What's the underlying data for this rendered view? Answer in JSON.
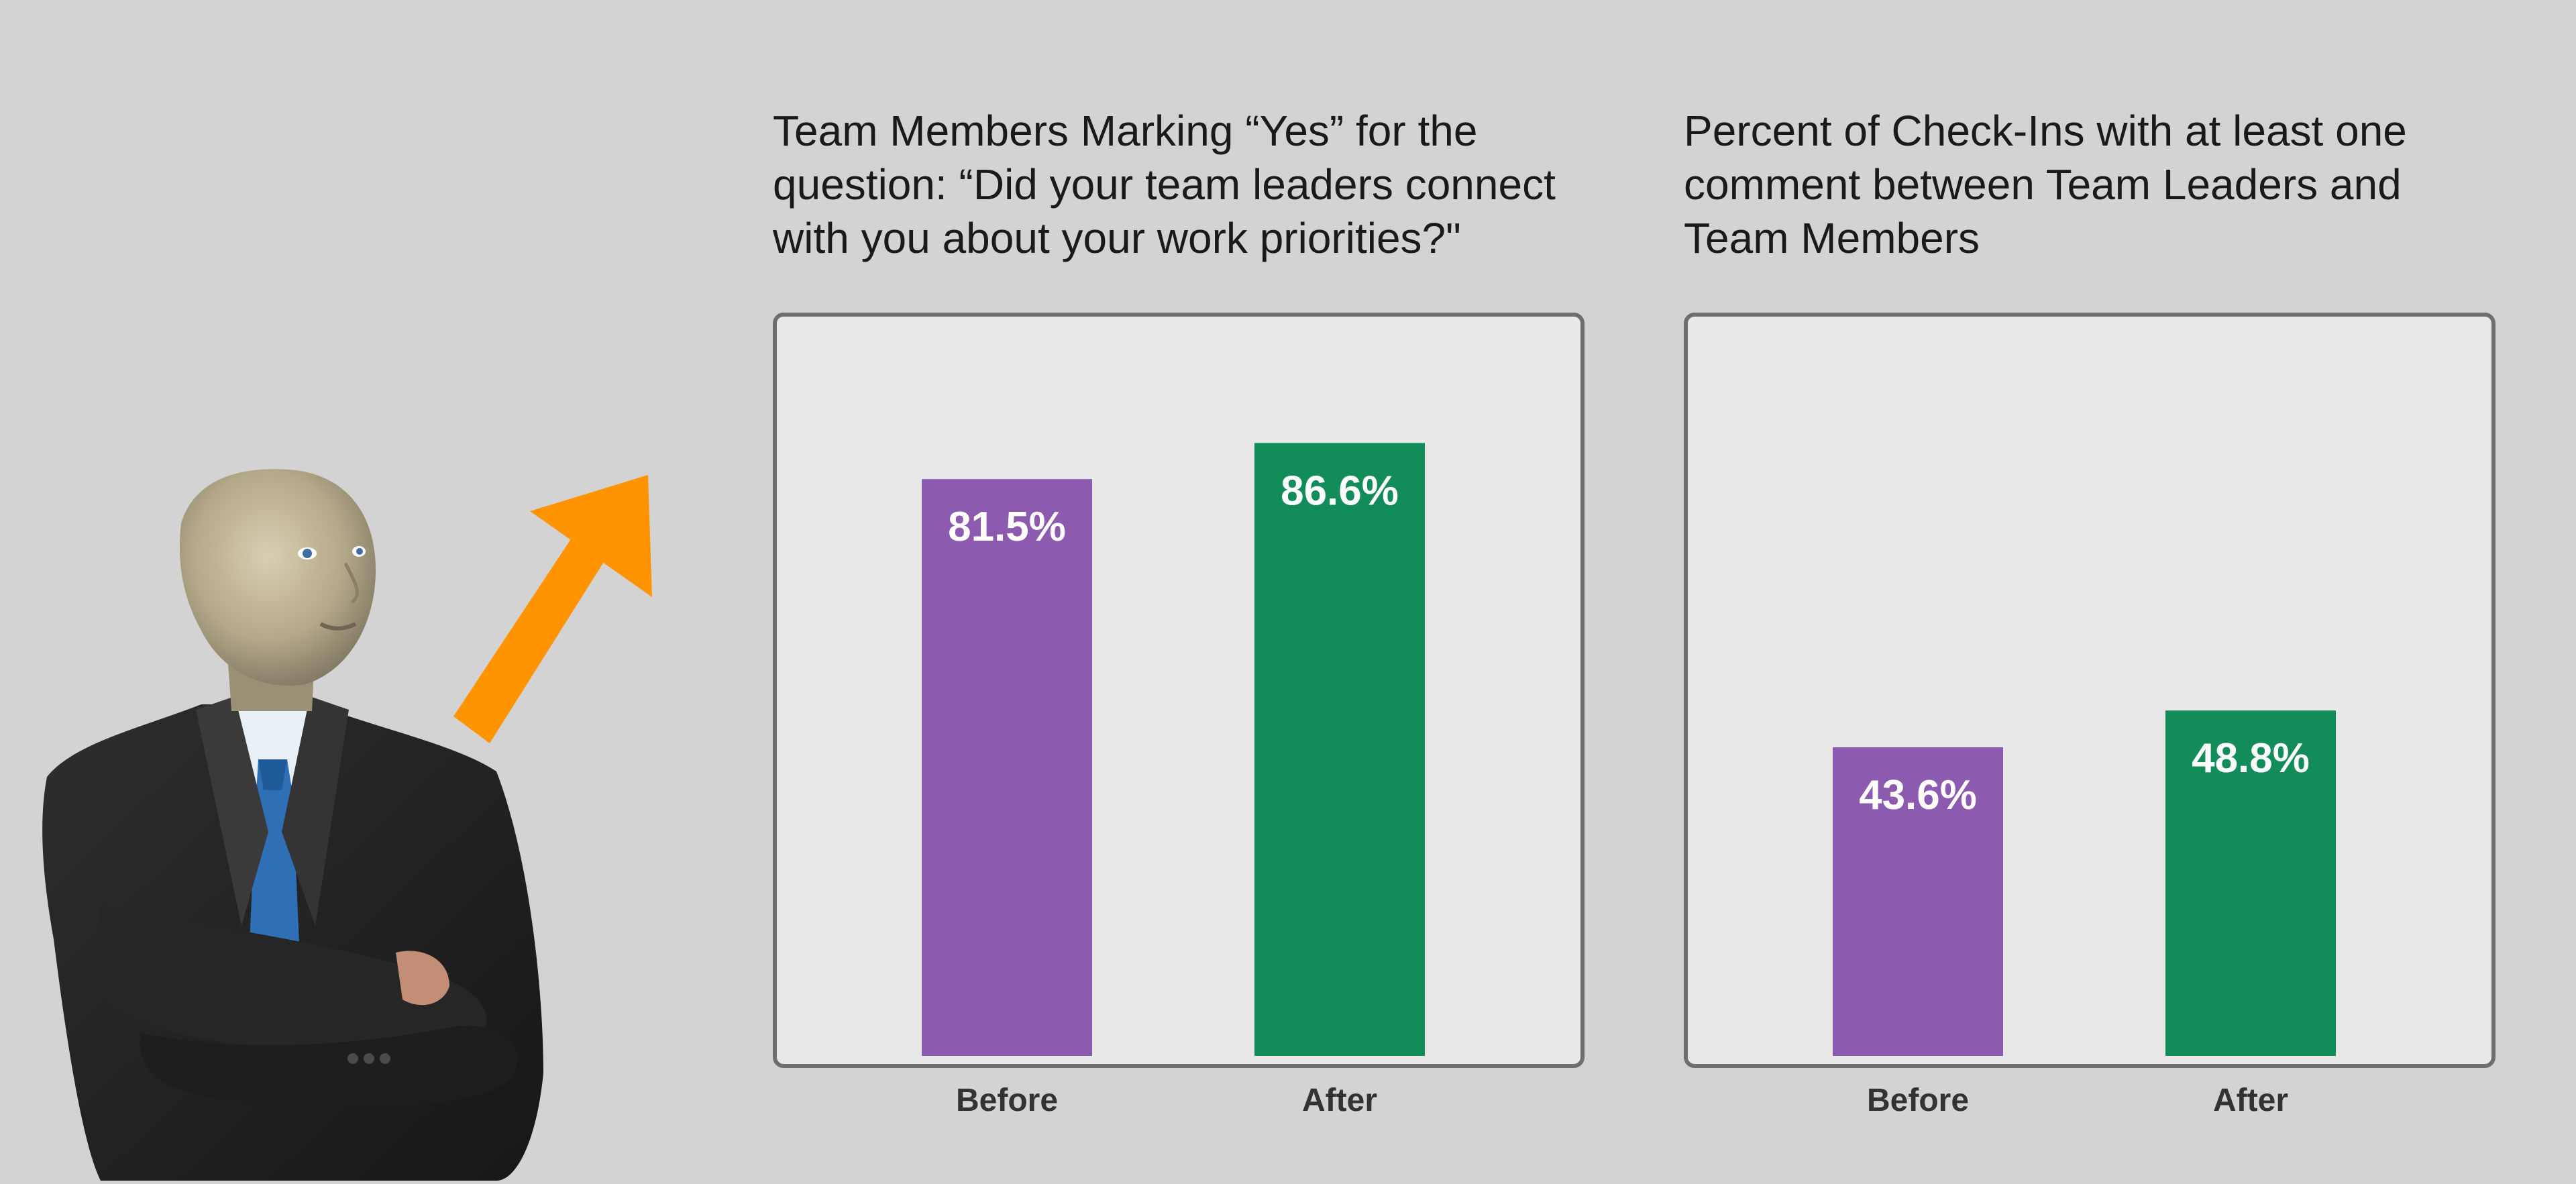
{
  "colors": {
    "background": "#d3d3d3",
    "plot_background": "#e8e8e8",
    "plot_border": "#6e6e6e",
    "before": "#8c5bb0",
    "after": "#128c58",
    "arrow": "#ff9400",
    "value_text": "#ffffff"
  },
  "illustration": {
    "figure": "suited-man-arms-crossed",
    "arrow_icon": "up-right-arrow-icon"
  },
  "chart_data": [
    {
      "type": "bar",
      "title": "Team Members Marking “Yes” for the question: “Did your team leaders connect with you about your work priorities?\"",
      "categories": [
        "Before",
        "After"
      ],
      "values": [
        81.5,
        86.6
      ],
      "value_labels": [
        "81.5%",
        "86.6%"
      ],
      "unit": "%",
      "ylim": [
        0,
        100
      ],
      "grid": false,
      "legend": "none",
      "bar_colors": [
        "#8c5bb0",
        "#128c58"
      ]
    },
    {
      "type": "bar",
      "title": "Percent of Check-Ins with at least one comment between Team Leaders and Team Members",
      "categories": [
        "Before",
        "After"
      ],
      "values": [
        43.6,
        48.8
      ],
      "value_labels": [
        "43.6%",
        "48.8%"
      ],
      "unit": "%",
      "ylim": [
        0,
        100
      ],
      "grid": false,
      "legend": "none",
      "bar_colors": [
        "#8c5bb0",
        "#128c58"
      ]
    }
  ]
}
